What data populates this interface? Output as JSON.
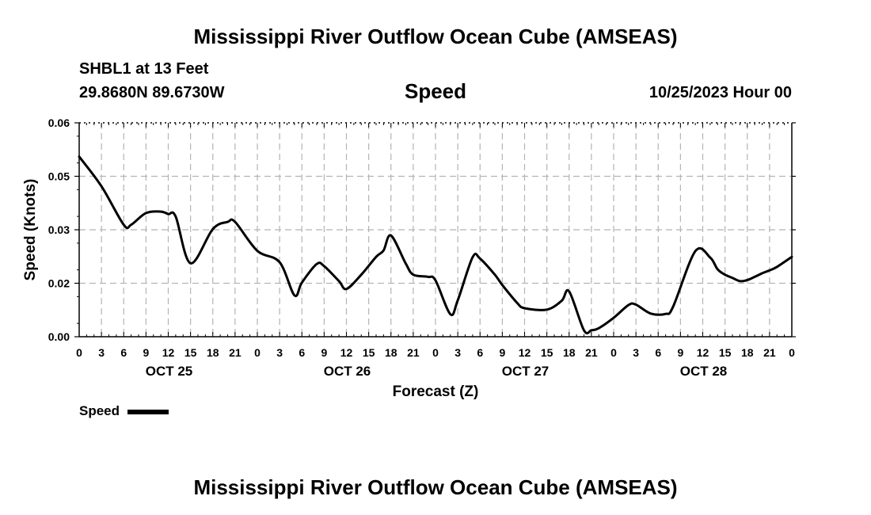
{
  "header": {
    "title": "Mississippi River Outflow Ocean Cube (AMSEAS)",
    "station": "SHBL1 at 13 Feet",
    "location": "29.8680N  89.6730W",
    "variable": "Speed",
    "datetime": "10/25/2023 Hour 00"
  },
  "footer": {
    "title": "Mississippi River Outflow Ocean Cube (AMSEAS)"
  },
  "legend": {
    "label": "Speed"
  },
  "chart_data": {
    "type": "line",
    "title": "Speed",
    "xlabel": "Forecast (Z)",
    "ylabel": "Speed (Knots)",
    "ylim": [
      0,
      0.06
    ],
    "xlim": [
      0,
      96
    ],
    "grid": true,
    "yticks": [
      "0.00",
      "0.02",
      "0.03",
      "0.05",
      "0.06"
    ],
    "xtick_labels": [
      "0",
      "3",
      "6",
      "9",
      "12",
      "15",
      "18",
      "21",
      "0",
      "3",
      "6",
      "9",
      "12",
      "15",
      "18",
      "21",
      "0",
      "3",
      "6",
      "9",
      "12",
      "15",
      "18",
      "21",
      "0",
      "3",
      "6",
      "9",
      "12",
      "15",
      "18",
      "21",
      "0"
    ],
    "date_labels": [
      {
        "hour": 12,
        "label": "OCT 25"
      },
      {
        "hour": 36,
        "label": "OCT 26"
      },
      {
        "hour": 60,
        "label": "OCT 27"
      },
      {
        "hour": 84,
        "label": "OCT 28"
      }
    ],
    "series": [
      {
        "name": "Speed",
        "color": "#000000",
        "x": [
          0,
          3,
          6,
          7,
          9,
          11,
          12,
          13,
          15,
          18,
          20,
          21,
          24,
          27,
          29,
          30,
          32,
          33,
          35,
          36,
          38,
          40,
          41,
          42,
          44,
          45,
          47,
          48,
          50,
          51,
          53,
          54,
          56,
          57,
          59,
          60,
          63,
          65,
          66,
          68,
          69,
          70,
          72,
          74,
          75,
          77,
          79,
          80,
          83,
          85,
          86,
          87,
          88,
          89,
          90,
          91,
          92,
          93,
          94,
          96
        ],
        "y": [
          0.0505,
          0.0422,
          0.0314,
          0.0314,
          0.0347,
          0.0351,
          0.0344,
          0.0337,
          0.0206,
          0.0302,
          0.0322,
          0.0322,
          0.0241,
          0.0209,
          0.0116,
          0.0152,
          0.0204,
          0.0198,
          0.0156,
          0.0134,
          0.0174,
          0.0224,
          0.0242,
          0.0284,
          0.0205,
          0.0174,
          0.0168,
          0.0158,
          0.0063,
          0.0102,
          0.0223,
          0.0219,
          0.0174,
          0.0145,
          0.0095,
          0.008,
          0.0076,
          0.0101,
          0.0127,
          0.0018,
          0.0018,
          0.0024,
          0.0053,
          0.0089,
          0.009,
          0.0065,
          0.0064,
          0.0084,
          0.024,
          0.0222,
          0.0189,
          0.0174,
          0.0165,
          0.0156,
          0.0159,
          0.0168,
          0.0178,
          0.0186,
          0.0196,
          0.0224
        ]
      }
    ]
  }
}
